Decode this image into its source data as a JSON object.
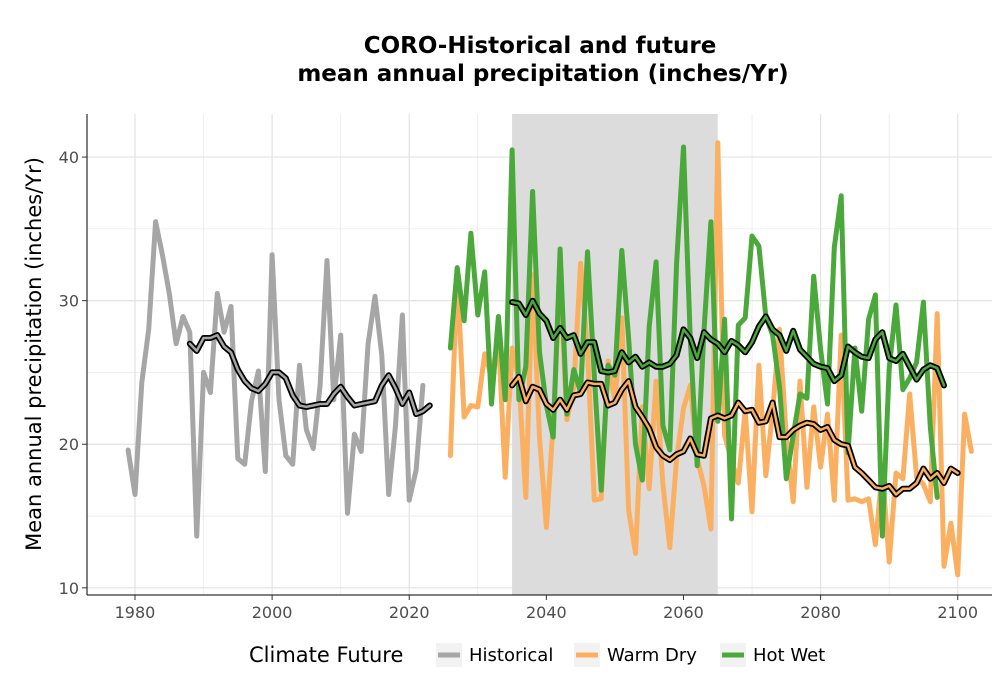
{
  "chart_data": {
    "type": "line",
    "title_line1": "CORO-Historical and future",
    "title_line2": "mean annual precipitation (inches/Yr)",
    "xlabel": "",
    "ylabel": "Mean annual precipitation (inches/Yr)",
    "xlim": [
      1973,
      2105
    ],
    "ylim": [
      9.5,
      43
    ],
    "x_ticks": [
      1980,
      2000,
      2020,
      2040,
      2060,
      2080,
      2100
    ],
    "y_ticks": [
      10,
      20,
      30,
      40
    ],
    "grid": true,
    "shaded_period": [
      2035,
      2065
    ],
    "legend": {
      "title": "Climate Future",
      "position": "bottom",
      "entries": [
        "Historical",
        "Warm Dry",
        "Hot Wet"
      ]
    },
    "colors": {
      "Historical": "#a6a6a6",
      "Warm Dry": "#fbb061",
      "Hot Wet": "#4aa93a",
      "smooth_line": "#000000",
      "shade": "#dcdcdc",
      "grid": "#e3e3e3"
    },
    "series": [
      {
        "name": "Historical",
        "x_start": 1979,
        "values": [
          19.6,
          16.5,
          24.3,
          28.0,
          35.5,
          33.2,
          30.5,
          27.0,
          28.9,
          27.8,
          13.6,
          25.0,
          23.6,
          30.5,
          27.8,
          29.6,
          19.0,
          18.6,
          23.0,
          25.1,
          18.1,
          33.2,
          23.1,
          19.2,
          18.6,
          25.5,
          21.0,
          19.7,
          24.1,
          32.8,
          23.1,
          27.6,
          15.2,
          20.7,
          19.5,
          27.0,
          30.3,
          26.2,
          16.5,
          21.3,
          29.0,
          16.1,
          18.2,
          24.1
        ]
      },
      {
        "name": "Warm Dry",
        "x_start": 2026,
        "values": [
          19.2,
          31.9,
          21.9,
          22.7,
          22.6,
          26.3,
          24.7,
          27.4,
          17.7,
          26.7,
          24.5,
          16.3,
          31.8,
          20.5,
          14.2,
          21.5,
          31.7,
          21.7,
          24.0,
          32.6,
          26.5,
          16.1,
          16.2,
          25.8,
          23.0,
          28.8,
          15.4,
          12.4,
          22.6,
          16.9,
          24.4,
          17.2,
          12.8,
          19.0,
          22.5,
          24.1,
          19.0,
          17.1,
          14.1,
          41.0,
          20.6,
          18.9,
          17.3,
          22.4,
          15.3,
          25.5,
          17.8,
          22.3,
          28.0,
          20.5,
          16.0,
          24.4,
          17.0,
          22.6,
          18.4,
          22.1,
          16.1,
          27.6,
          16.1,
          16.2,
          16.0,
          16.2,
          13.0,
          18.2,
          11.8,
          18.0,
          17.6,
          23.5,
          17.7,
          17.2,
          16.0,
          29.1,
          11.5,
          14.5,
          10.9,
          22.1,
          19.5
        ]
      },
      {
        "name": "Hot Wet",
        "x_start": 2026,
        "values": [
          26.7,
          32.3,
          28.6,
          34.7,
          29.0,
          32.0,
          22.8,
          28.9,
          23.1,
          40.5,
          23.1,
          25.4,
          37.6,
          26.4,
          22.7,
          20.5,
          33.6,
          22.1,
          25.2,
          23.6,
          33.4,
          24.8,
          16.8,
          25.5,
          24.8,
          33.5,
          27.4,
          20.0,
          17.5,
          28.2,
          32.7,
          21.3,
          19.6,
          32.6,
          40.7,
          27.3,
          18.5,
          27.9,
          35.5,
          21.6,
          28.7,
          14.8,
          28.3,
          28.8,
          34.5,
          33.8,
          28.9,
          27.6,
          24.0,
          17.6,
          20.6,
          23.5,
          23.2,
          31.7,
          26.6,
          22.8,
          33.7,
          37.3,
          19.4,
          26.7,
          22.3,
          28.7,
          30.4,
          13.6,
          25.3,
          29.7,
          23.8,
          24.6,
          25.7,
          29.9,
          21.2,
          16.3
        ]
      }
    ],
    "smoothed_series": [
      {
        "x_start": 1988,
        "values": [
          27.0,
          26.5,
          27.4,
          27.4,
          27.6,
          26.8,
          26.4,
          25.2,
          24.4,
          23.9,
          23.7,
          24.2,
          25.0,
          25.0,
          24.6,
          23.4,
          22.7,
          22.6,
          22.7,
          22.8,
          22.8,
          23.5,
          24.0,
          23.3,
          22.7,
          22.8,
          22.9,
          23.0,
          24.1,
          24.8,
          23.9,
          22.8,
          23.6,
          22.1,
          22.3,
          22.7
        ]
      },
      {
        "x_start": 2035,
        "values": [
          24.1,
          24.7,
          23.0,
          24.0,
          23.8,
          22.8,
          22.4,
          23.1,
          22.4,
          23.4,
          23.5,
          24.3,
          24.2,
          24.2,
          22.7,
          22.9,
          23.8,
          24.4,
          22.6,
          21.9,
          21.1,
          19.8,
          19.2,
          18.9,
          19.3,
          19.5,
          20.4,
          19.3,
          19.2,
          21.8,
          22.0,
          21.8,
          22.0,
          22.9,
          22.3,
          22.4,
          21.5,
          21.6,
          22.9,
          20.5,
          20.5,
          21.0,
          21.3,
          21.5,
          21.4,
          21.0,
          21.2,
          20.3,
          20.0,
          19.9,
          18.4,
          18.0,
          17.5,
          17.0,
          16.9,
          17.1,
          16.5,
          16.9,
          16.9,
          17.3,
          18.3,
          17.6,
          18.0,
          17.3,
          18.3,
          18.0
        ]
      },
      {
        "x_start": 2035,
        "values": [
          29.9,
          29.8,
          29.0,
          30.0,
          29.1,
          28.6,
          27.4,
          28.1,
          27.4,
          27.6,
          26.3,
          27.1,
          27.1,
          25.1,
          25.0,
          25.1,
          26.4,
          25.7,
          26.1,
          25.4,
          25.7,
          25.4,
          25.4,
          25.6,
          26.2,
          28.0,
          27.4,
          26.0,
          27.8,
          27.3,
          27.0,
          26.4,
          27.2,
          26.9,
          26.4,
          27.1,
          28.2,
          28.9,
          28.0,
          27.6,
          26.5,
          27.9,
          26.6,
          26.1,
          25.6,
          25.4,
          25.3,
          24.4,
          24.8,
          26.8,
          26.4,
          26.1,
          26.0,
          27.3,
          27.8,
          26.0,
          25.8,
          26.3,
          25.4,
          24.5,
          25.2,
          25.5,
          25.3,
          24.1
        ]
      }
    ]
  }
}
